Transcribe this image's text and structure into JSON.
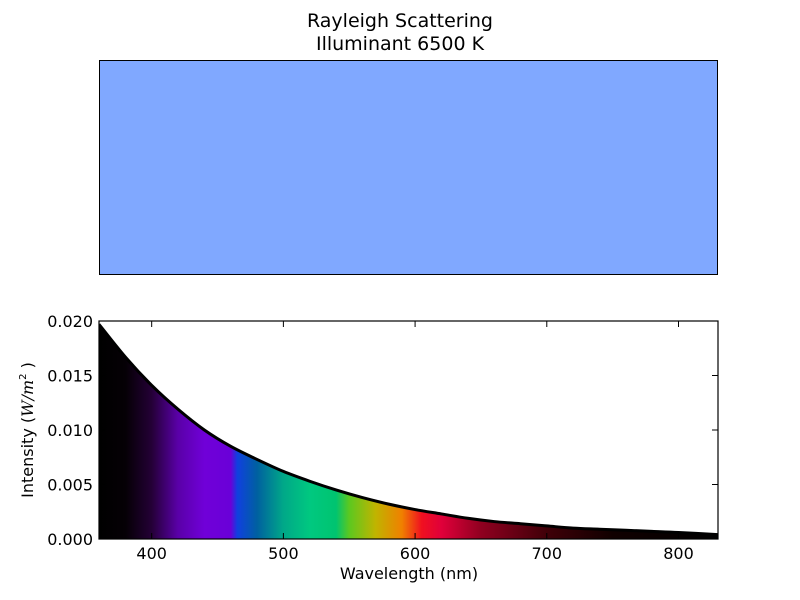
{
  "chart_data": [
    {
      "type": "color-swatch",
      "title_line1": "Rayleigh Scattering",
      "title_line2": "Illuminant 6500 K",
      "color": "#80a8ff"
    },
    {
      "type": "area",
      "xlabel": "Wavelength (nm)",
      "ylabel_prefix": "Intensity (",
      "ylabel_unit_w": "W",
      "ylabel_unit_sep": "/",
      "ylabel_unit_m": "m",
      "ylabel_unit_exp": "2",
      "ylabel_suffix": " )",
      "xlim": [
        360,
        830
      ],
      "ylim": [
        0,
        0.02
      ],
      "x_ticks": [
        "400",
        "500",
        "600",
        "700",
        "800"
      ],
      "y_ticks": [
        "0.000",
        "0.005",
        "0.010",
        "0.015",
        "0.020"
      ],
      "grid": false,
      "x": [
        360,
        380,
        400,
        420,
        440,
        460,
        480,
        500,
        520,
        540,
        560,
        580,
        600,
        620,
        640,
        660,
        680,
        700,
        720,
        740,
        760,
        780,
        800,
        830
      ],
      "y": [
        0.0197,
        0.0167,
        0.0141,
        0.0119,
        0.01,
        0.0085,
        0.0073,
        0.0062,
        0.0053,
        0.0045,
        0.0038,
        0.0032,
        0.0027,
        0.0023,
        0.0019,
        0.0016,
        0.0014,
        0.0012,
        0.001,
        0.0009,
        0.0008,
        0.0007,
        0.0006,
        0.0004
      ],
      "spectrum_stops": [
        {
          "wavelength": 360,
          "color": "#000000"
        },
        {
          "wavelength": 380,
          "color": "#050005"
        },
        {
          "wavelength": 400,
          "color": "#240036"
        },
        {
          "wavelength": 420,
          "color": "#5a00a8"
        },
        {
          "wavelength": 440,
          "color": "#7000d8"
        },
        {
          "wavelength": 460,
          "color": "#6a00d8"
        },
        {
          "wavelength": 465,
          "color": "#1040e0"
        },
        {
          "wavelength": 480,
          "color": "#0060a0"
        },
        {
          "wavelength": 500,
          "color": "#00a888"
        },
        {
          "wavelength": 520,
          "color": "#00c880"
        },
        {
          "wavelength": 540,
          "color": "#00c470"
        },
        {
          "wavelength": 550,
          "color": "#5cc820"
        },
        {
          "wavelength": 570,
          "color": "#c0b400"
        },
        {
          "wavelength": 590,
          "color": "#f08000"
        },
        {
          "wavelength": 605,
          "color": "#f01020"
        },
        {
          "wavelength": 620,
          "color": "#e0003a"
        },
        {
          "wavelength": 650,
          "color": "#900020"
        },
        {
          "wavelength": 700,
          "color": "#400008"
        },
        {
          "wavelength": 750,
          "color": "#100000"
        },
        {
          "wavelength": 830,
          "color": "#000000"
        }
      ]
    }
  ]
}
